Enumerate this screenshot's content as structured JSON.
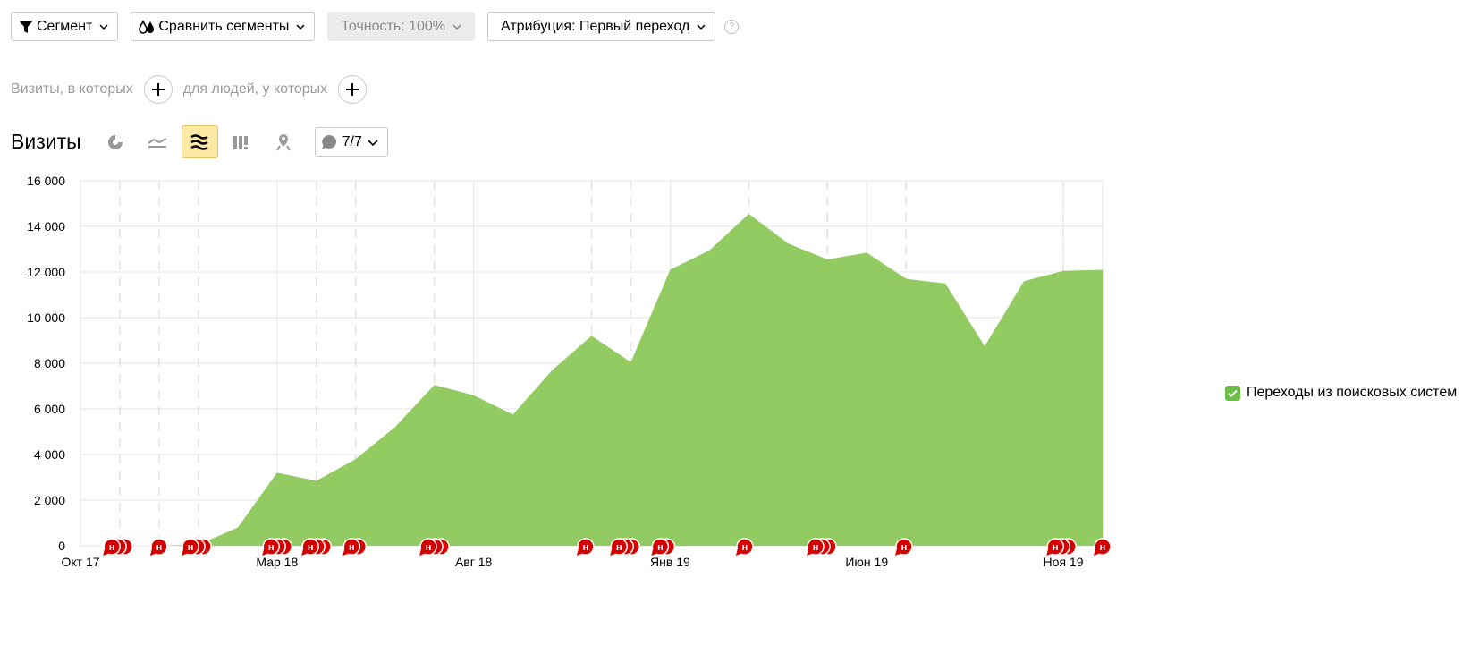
{
  "toolbar": {
    "segment_label": "Сегмент",
    "compare_label": "Сравнить сегменты",
    "accuracy_label": "Точность: 100%",
    "attribution_label": "Атрибуция: Первый переход",
    "help_label": "?"
  },
  "filters": {
    "visits_label": "Визиты, в которых",
    "people_label": "для людей, у которых"
  },
  "visual": {
    "title": "Визиты",
    "notes_count": "7/7"
  },
  "note_marker_label": "н",
  "colors": {
    "area": "#8cc858",
    "accent": "#6cbf45",
    "note": "#d40000",
    "active_button": "#fde9a4"
  },
  "chart_data": {
    "type": "area",
    "x": [
      "2017-10",
      "2017-11",
      "2017-12",
      "2018-01",
      "2018-02",
      "2018-03",
      "2018-04",
      "2018-05",
      "2018-06",
      "2018-07",
      "2018-08",
      "2018-09",
      "2018-10",
      "2018-11",
      "2018-12",
      "2019-01",
      "2019-02",
      "2019-03",
      "2019-04",
      "2019-05",
      "2019-06",
      "2019-07",
      "2019-08",
      "2019-09",
      "2019-10",
      "2019-11",
      "2019-12"
    ],
    "x_tick_labels": [
      "Окт 17",
      "Мар 18",
      "Авг 18",
      "Янв 19",
      "Июн 19",
      "Ноя 19"
    ],
    "x_tick_index": [
      0,
      5,
      10,
      15,
      20,
      25
    ],
    "dashed_gridline_index": [
      1,
      2,
      3,
      6,
      7,
      9,
      13,
      14,
      17,
      19,
      21,
      25
    ],
    "series": [
      {
        "name": "Переходы из поисковых систем",
        "values": [
          0,
          0,
          0,
          50,
          800,
          3200,
          2850,
          3800,
          5200,
          7050,
          6600,
          5750,
          7700,
          9200,
          8050,
          12100,
          12950,
          14550,
          13250,
          12550,
          12850,
          11700,
          11500,
          8750,
          11600,
          12050,
          12100
        ]
      }
    ],
    "ylim": [
      0,
      16000
    ],
    "y_ticks": [
      0,
      2000,
      4000,
      6000,
      8000,
      10000,
      12000,
      14000,
      16000
    ],
    "y_tick_labels": [
      "0",
      "2 000",
      "4 000",
      "6 000",
      "8 000",
      "10 000",
      "12 000",
      "14 000",
      "16 000"
    ],
    "grid": true,
    "legend": "right",
    "annotations": [
      {
        "x": 0.8,
        "stack": 3
      },
      {
        "x": 2.0,
        "stack": 1
      },
      {
        "x": 2.8,
        "stack": 3
      },
      {
        "x": 4.85,
        "stack": 3
      },
      {
        "x": 5.85,
        "stack": 3
      },
      {
        "x": 6.9,
        "stack": 2
      },
      {
        "x": 8.85,
        "stack": 3
      },
      {
        "x": 12.85,
        "stack": 1
      },
      {
        "x": 13.7,
        "stack": 3
      },
      {
        "x": 14.75,
        "stack": 2
      },
      {
        "x": 16.9,
        "stack": 1
      },
      {
        "x": 18.7,
        "stack": 3
      },
      {
        "x": 20.95,
        "stack": 1
      },
      {
        "x": 24.8,
        "stack": 3
      },
      {
        "x": 26.0,
        "stack": 1
      }
    ]
  }
}
